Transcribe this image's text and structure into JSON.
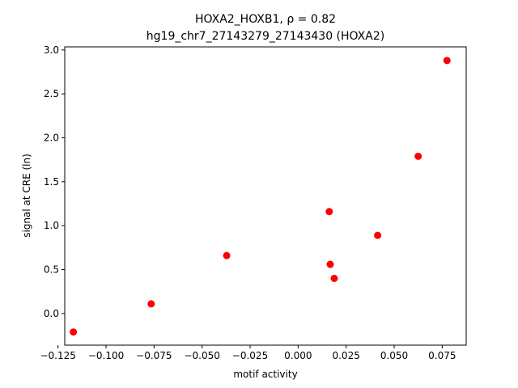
{
  "chart_data": {
    "type": "scatter",
    "title_line1": "HOXA2_HOXB1, ρ = 0.82",
    "title_line2": "hg19_chr7_27143279_27143430 (HOXA2)",
    "xlabel": "motif activity",
    "ylabel": "signal at CRE (ln)",
    "xlim": [
      -0.1215,
      0.0875
    ],
    "ylim": [
      -0.36,
      3.035
    ],
    "x_ticks": [
      -0.125,
      -0.1,
      -0.075,
      -0.05,
      -0.025,
      0.0,
      0.025,
      0.05,
      0.075
    ],
    "x_tick_labels": [
      "−0.125",
      "−0.100",
      "−0.075",
      "−0.050",
      "−0.025",
      "0.000",
      "0.025",
      "0.050",
      "0.075"
    ],
    "y_ticks": [
      0.0,
      0.5,
      1.0,
      1.5,
      2.0,
      2.5,
      3.0
    ],
    "y_tick_labels": [
      "0.0",
      "0.5",
      "1.0",
      "1.5",
      "2.0",
      "2.5",
      "3.0"
    ],
    "point_color": "#ff0000",
    "points": [
      {
        "x": -0.117,
        "y": -0.21
      },
      {
        "x": -0.0765,
        "y": 0.11
      },
      {
        "x": -0.0372,
        "y": 0.66
      },
      {
        "x": 0.0162,
        "y": 1.16
      },
      {
        "x": 0.0167,
        "y": 0.56
      },
      {
        "x": 0.0188,
        "y": 0.4
      },
      {
        "x": 0.0414,
        "y": 0.89
      },
      {
        "x": 0.0625,
        "y": 1.79
      },
      {
        "x": 0.0775,
        "y": 2.88
      }
    ]
  }
}
